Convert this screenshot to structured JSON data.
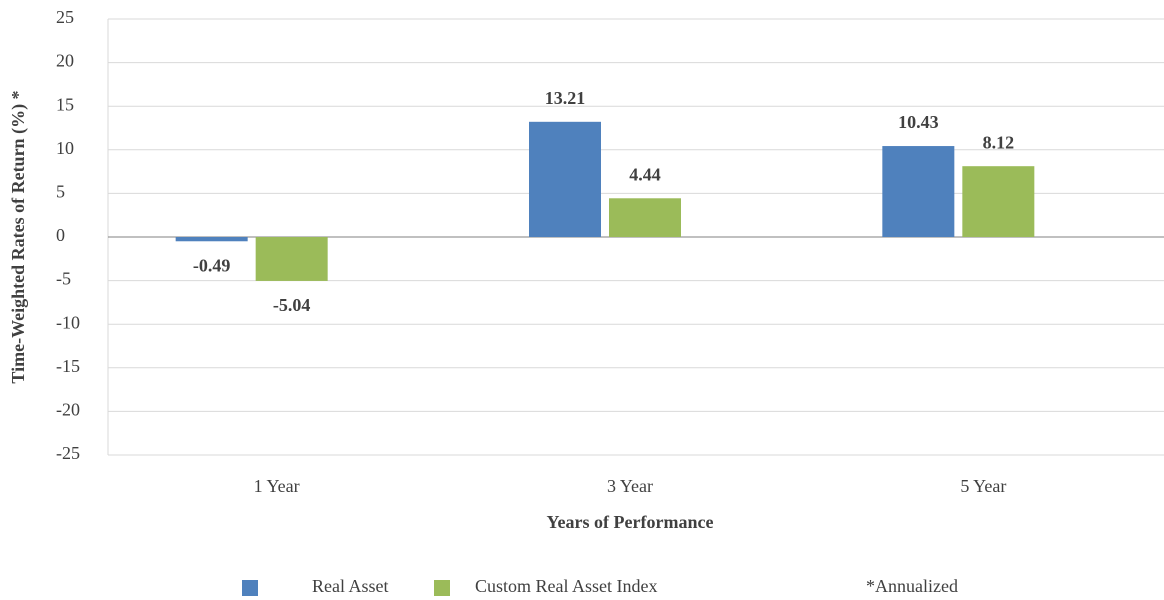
{
  "chart_data": {
    "type": "bar",
    "y_label": "Time-Weighted Rates of Return (%) *",
    "x_label": "Years of Performance",
    "annotation": "*Annualized",
    "categories": [
      "1 Year",
      "3 Year",
      "5 Year"
    ],
    "series": [
      {
        "name": "Real Asset",
        "color": "#4f81bd",
        "values": [
          -0.49,
          13.21,
          10.43
        ]
      },
      {
        "name": "Custom Real Asset Index",
        "color": "#9bbb59",
        "values": [
          -5.04,
          4.44,
          8.12
        ]
      }
    ],
    "ylim": [
      -25,
      25
    ],
    "yticks": [
      -25,
      -20,
      -15,
      -10,
      -5,
      0,
      5,
      10,
      15,
      20,
      25
    ],
    "grid": true,
    "legend": "bottom"
  }
}
